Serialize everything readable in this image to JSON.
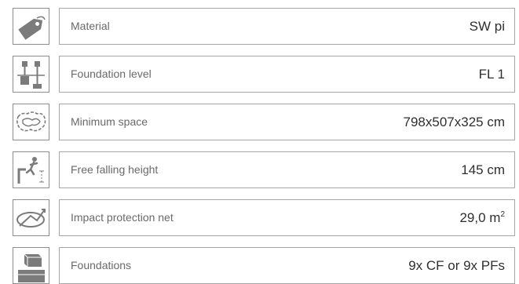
{
  "specs": {
    "material": {
      "label": "Material",
      "value": "SW pi",
      "icon": "tag-icon"
    },
    "foundation_level": {
      "label": "Foundation level",
      "value": "FL 1",
      "icon": "foundation-level-icon"
    },
    "minimum_space": {
      "label": "Minimum space",
      "value": "798x507x325 cm",
      "icon": "space-outline-icon"
    },
    "free_falling_height": {
      "label": "Free falling height",
      "value": "145 cm",
      "icon": "falling-figure-icon"
    },
    "impact_protection": {
      "label": "Impact protection net",
      "value": "29,0 m",
      "value_sup": "2",
      "icon": "impact-area-icon"
    },
    "foundations": {
      "label": "Foundations",
      "value": "9x CF or 9x PFs",
      "icon": "foundation-block-icon"
    }
  },
  "colors": {
    "icon_fill": "#7b7b7b",
    "border": "#a7a7a7",
    "text": "#2f2f2f",
    "label_text": "#6a6a6a"
  }
}
